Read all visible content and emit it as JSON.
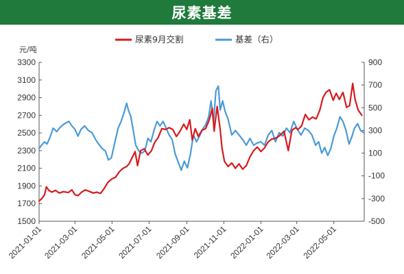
{
  "header": {
    "title": "尿素基差"
  },
  "colors": {
    "banner": "#1f7a3c",
    "futures": "#d7191c",
    "basis": "#4a9ad6",
    "axis": "#555555"
  },
  "chart_data": {
    "type": "line",
    "title": "尿素基差",
    "y_left_unit": "元/吨",
    "y_left_range": [
      1500,
      3300
    ],
    "y_left_ticks": [
      "3300",
      "3100",
      "2900",
      "2700",
      "2500",
      "2300",
      "2100",
      "1900",
      "1700",
      "1500"
    ],
    "y_right_range": [
      -500,
      900
    ],
    "y_right_ticks": [
      "900",
      "700",
      "500",
      "300",
      "100",
      "-100",
      "-300",
      "-500"
    ],
    "x_ticks": [
      "2021-01-01",
      "2021-03-01",
      "2021-05-01",
      "2021-07-01",
      "2021-09-01",
      "2021-11-01",
      "2022-01-01",
      "2022-03-01",
      "2022-05-01"
    ],
    "x_range": [
      "2021-01-01",
      "2022-06-20"
    ],
    "legend": [
      "尿素9月交割",
      "基差（右）"
    ],
    "legend_position": "top-center",
    "grid": false,
    "series": [
      {
        "name": "尿素9月交割",
        "axis": "left",
        "points": [
          [
            "2021-01-01",
            1730
          ],
          [
            "2021-01-06",
            1760
          ],
          [
            "2021-01-10",
            1800
          ],
          [
            "2021-01-13",
            1890
          ],
          [
            "2021-01-17",
            1850
          ],
          [
            "2021-01-22",
            1830
          ],
          [
            "2021-01-28",
            1850
          ],
          [
            "2021-02-03",
            1820
          ],
          [
            "2021-02-10",
            1835
          ],
          [
            "2021-02-18",
            1825
          ],
          [
            "2021-02-24",
            1855
          ],
          [
            "2021-03-01",
            1800
          ],
          [
            "2021-03-06",
            1790
          ],
          [
            "2021-03-12",
            1830
          ],
          [
            "2021-03-18",
            1855
          ],
          [
            "2021-03-24",
            1840
          ],
          [
            "2021-03-31",
            1820
          ],
          [
            "2021-04-06",
            1830
          ],
          [
            "2021-04-12",
            1815
          ],
          [
            "2021-04-18",
            1870
          ],
          [
            "2021-04-24",
            1940
          ],
          [
            "2021-05-01",
            1980
          ],
          [
            "2021-05-07",
            2000
          ],
          [
            "2021-05-13",
            2060
          ],
          [
            "2021-05-19",
            2100
          ],
          [
            "2021-05-25",
            2120
          ],
          [
            "2021-05-29",
            2150
          ],
          [
            "2021-06-03",
            2220
          ],
          [
            "2021-06-08",
            2290
          ],
          [
            "2021-06-12",
            2130
          ],
          [
            "2021-06-17",
            2300
          ],
          [
            "2021-06-23",
            2320
          ],
          [
            "2021-06-29",
            2250
          ],
          [
            "2021-07-05",
            2300
          ],
          [
            "2021-07-10",
            2390
          ],
          [
            "2021-07-16",
            2450
          ],
          [
            "2021-07-22",
            2550
          ],
          [
            "2021-07-28",
            2540
          ],
          [
            "2021-08-03",
            2560
          ],
          [
            "2021-08-09",
            2540
          ],
          [
            "2021-08-15",
            2460
          ],
          [
            "2021-08-21",
            2520
          ],
          [
            "2021-08-27",
            2600
          ],
          [
            "2021-09-01",
            2540
          ],
          [
            "2021-09-06",
            2650
          ],
          [
            "2021-09-10",
            2420
          ],
          [
            "2021-09-15",
            2550
          ],
          [
            "2021-09-20",
            2460
          ],
          [
            "2021-09-26",
            2530
          ],
          [
            "2021-10-02",
            2550
          ],
          [
            "2021-10-08",
            2650
          ],
          [
            "2021-10-13",
            2780
          ],
          [
            "2021-10-16",
            2520
          ],
          [
            "2021-10-21",
            2800
          ],
          [
            "2021-10-26",
            2540
          ],
          [
            "2021-10-29",
            2330
          ],
          [
            "2021-11-02",
            2180
          ],
          [
            "2021-11-08",
            2120
          ],
          [
            "2021-11-14",
            2160
          ],
          [
            "2021-11-20",
            2100
          ],
          [
            "2021-11-26",
            2150
          ],
          [
            "2021-12-02",
            2090
          ],
          [
            "2021-12-08",
            2130
          ],
          [
            "2021-12-14",
            2230
          ],
          [
            "2021-12-20",
            2300
          ],
          [
            "2021-12-26",
            2340
          ],
          [
            "2022-01-01",
            2290
          ],
          [
            "2022-01-07",
            2330
          ],
          [
            "2022-01-13",
            2400
          ],
          [
            "2022-01-19",
            2430
          ],
          [
            "2022-01-25",
            2440
          ],
          [
            "2022-02-01",
            2470
          ],
          [
            "2022-02-08",
            2520
          ],
          [
            "2022-02-15",
            2300
          ],
          [
            "2022-02-21",
            2530
          ],
          [
            "2022-02-27",
            2560
          ],
          [
            "2022-03-03",
            2540
          ],
          [
            "2022-03-09",
            2580
          ],
          [
            "2022-03-15",
            2710
          ],
          [
            "2022-03-21",
            2650
          ],
          [
            "2022-03-27",
            2680
          ],
          [
            "2022-04-02",
            2660
          ],
          [
            "2022-04-08",
            2760
          ],
          [
            "2022-04-13",
            2900
          ],
          [
            "2022-04-18",
            2960
          ],
          [
            "2022-04-24",
            2990
          ],
          [
            "2022-04-30",
            2870
          ],
          [
            "2022-05-05",
            2950
          ],
          [
            "2022-05-10",
            2880
          ],
          [
            "2022-05-16",
            2960
          ],
          [
            "2022-05-22",
            2790
          ],
          [
            "2022-05-27",
            2810
          ],
          [
            "2022-06-01",
            3060
          ],
          [
            "2022-06-05",
            2880
          ],
          [
            "2022-06-10",
            2760
          ],
          [
            "2022-06-16",
            2700
          ]
        ]
      },
      {
        "name": "基差（右）",
        "axis": "right",
        "points": [
          [
            "2021-01-01",
            140
          ],
          [
            "2021-01-05",
            170
          ],
          [
            "2021-01-10",
            200
          ],
          [
            "2021-01-14",
            180
          ],
          [
            "2021-01-19",
            240
          ],
          [
            "2021-01-24",
            320
          ],
          [
            "2021-01-30",
            290
          ],
          [
            "2021-02-05",
            330
          ],
          [
            "2021-02-12",
            360
          ],
          [
            "2021-02-19",
            380
          ],
          [
            "2021-02-24",
            340
          ],
          [
            "2021-03-01",
            310
          ],
          [
            "2021-03-06",
            250
          ],
          [
            "2021-03-11",
            310
          ],
          [
            "2021-03-17",
            340
          ],
          [
            "2021-03-23",
            300
          ],
          [
            "2021-03-29",
            280
          ],
          [
            "2021-04-04",
            220
          ],
          [
            "2021-04-09",
            180
          ],
          [
            "2021-04-15",
            140
          ],
          [
            "2021-04-20",
            120
          ],
          [
            "2021-04-25",
            40
          ],
          [
            "2021-04-30",
            60
          ],
          [
            "2021-05-05",
            180
          ],
          [
            "2021-05-11",
            320
          ],
          [
            "2021-05-16",
            380
          ],
          [
            "2021-05-21",
            460
          ],
          [
            "2021-05-25",
            540
          ],
          [
            "2021-05-28",
            480
          ],
          [
            "2021-06-01",
            420
          ],
          [
            "2021-06-05",
            300
          ],
          [
            "2021-06-09",
            170
          ],
          [
            "2021-06-14",
            120
          ],
          [
            "2021-06-19",
            100
          ],
          [
            "2021-06-24",
            120
          ],
          [
            "2021-06-29",
            230
          ],
          [
            "2021-07-04",
            200
          ],
          [
            "2021-07-09",
            300
          ],
          [
            "2021-07-14",
            380
          ],
          [
            "2021-07-19",
            340
          ],
          [
            "2021-07-24",
            380
          ],
          [
            "2021-07-29",
            320
          ],
          [
            "2021-08-03",
            260
          ],
          [
            "2021-08-08",
            220
          ],
          [
            "2021-08-13",
            90
          ],
          [
            "2021-08-18",
            20
          ],
          [
            "2021-08-23",
            -50
          ],
          [
            "2021-08-28",
            30
          ],
          [
            "2021-09-02",
            -30
          ],
          [
            "2021-09-07",
            90
          ],
          [
            "2021-09-12",
            260
          ],
          [
            "2021-09-17",
            200
          ],
          [
            "2021-09-22",
            250
          ],
          [
            "2021-09-27",
            310
          ],
          [
            "2021-10-02",
            350
          ],
          [
            "2021-10-07",
            420
          ],
          [
            "2021-10-11",
            560
          ],
          [
            "2021-10-15",
            370
          ],
          [
            "2021-10-19",
            650
          ],
          [
            "2021-10-23",
            690
          ],
          [
            "2021-10-26",
            480
          ],
          [
            "2021-10-30",
            560
          ],
          [
            "2021-11-03",
            470
          ],
          [
            "2021-11-08",
            400
          ],
          [
            "2021-11-14",
            260
          ],
          [
            "2021-11-20",
            300
          ],
          [
            "2021-11-26",
            260
          ],
          [
            "2021-12-02",
            220
          ],
          [
            "2021-12-08",
            170
          ],
          [
            "2021-12-14",
            230
          ],
          [
            "2021-12-20",
            170
          ],
          [
            "2021-12-26",
            190
          ],
          [
            "2022-01-01",
            200
          ],
          [
            "2022-01-07",
            170
          ],
          [
            "2022-01-13",
            260
          ],
          [
            "2022-01-19",
            300
          ],
          [
            "2022-01-25",
            200
          ],
          [
            "2022-01-31",
            280
          ],
          [
            "2022-02-06",
            250
          ],
          [
            "2022-02-12",
            320
          ],
          [
            "2022-02-18",
            280
          ],
          [
            "2022-02-24",
            380
          ],
          [
            "2022-03-02",
            310
          ],
          [
            "2022-03-08",
            260
          ],
          [
            "2022-03-14",
            320
          ],
          [
            "2022-03-20",
            300
          ],
          [
            "2022-03-26",
            260
          ],
          [
            "2022-04-01",
            170
          ],
          [
            "2022-04-06",
            200
          ],
          [
            "2022-04-11",
            100
          ],
          [
            "2022-04-16",
            150
          ],
          [
            "2022-04-21",
            80
          ],
          [
            "2022-04-26",
            140
          ],
          [
            "2022-05-01",
            250
          ],
          [
            "2022-05-06",
            320
          ],
          [
            "2022-05-11",
            420
          ],
          [
            "2022-05-16",
            380
          ],
          [
            "2022-05-21",
            300
          ],
          [
            "2022-05-26",
            180
          ],
          [
            "2022-05-31",
            250
          ],
          [
            "2022-06-04",
            320
          ],
          [
            "2022-06-09",
            360
          ],
          [
            "2022-06-14",
            300
          ],
          [
            "2022-06-19",
            280
          ]
        ]
      }
    ]
  }
}
